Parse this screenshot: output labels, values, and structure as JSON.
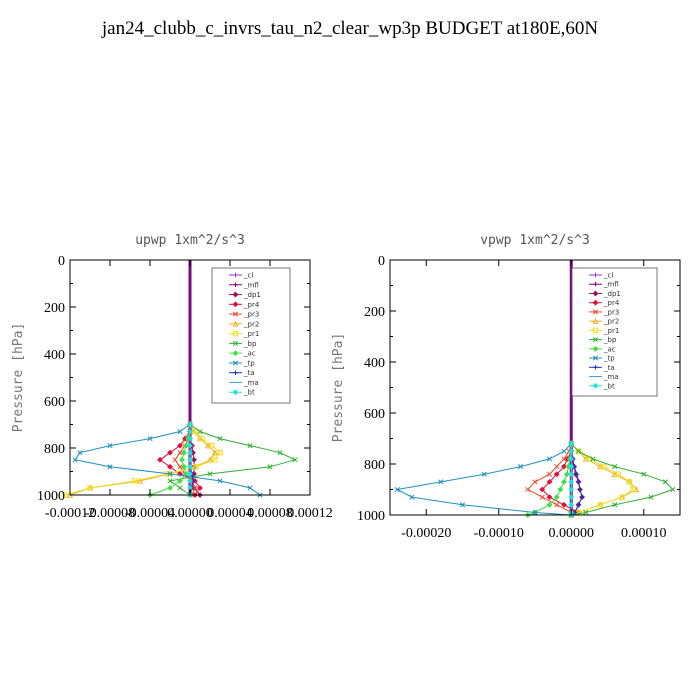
{
  "page": {
    "title": "jan24_clubb_c_invrs_tau_n2_clear_wp3p  BUDGET at180E,60N"
  },
  "legend_entries": [
    {
      "label": "_cl",
      "color": "#9b30d9",
      "marker": "plus"
    },
    {
      "label": "_mfl",
      "color": "#7a0a7a",
      "marker": "plus"
    },
    {
      "label": "_dp1",
      "color": "#a0105a",
      "marker": "diamond"
    },
    {
      "label": "_pr4",
      "color": "#e0103a",
      "marker": "diamond"
    },
    {
      "label": "_pr3",
      "color": "#f04a2a",
      "marker": "x"
    },
    {
      "label": "_pr2",
      "color": "#f0b020",
      "marker": "triangle"
    },
    {
      "label": "_pr1",
      "color": "#f0e020",
      "marker": "square"
    },
    {
      "label": "_bp",
      "color": "#30b030",
      "marker": "x"
    },
    {
      "label": "_ac",
      "color": "#40e040",
      "marker": "diamond"
    },
    {
      "label": "_tp",
      "color": "#2090c0",
      "marker": "x"
    },
    {
      "label": "_ta",
      "color": "#2030c0",
      "marker": "plus"
    },
    {
      "label": "_ma",
      "color": "#40a0e0",
      "marker": "dash"
    },
    {
      "label": "_bt",
      "color": "#20e0e0",
      "marker": "diamond"
    }
  ],
  "chart_data": [
    {
      "type": "line",
      "title": "upwp  1xm^2/s^3",
      "ylabel": "Pressure [hPa]",
      "xlabel": "",
      "xlim": [
        -0.00012,
        0.00012
      ],
      "ylim": [
        1000,
        0
      ],
      "x_ticks": [
        "-0.00012",
        "-0.00008",
        "-0.00004",
        "0.00000",
        "0.00004",
        "0.00008",
        "0.00012"
      ],
      "y_ticks": [
        "0",
        "200",
        "400",
        "600",
        "800",
        "1000"
      ],
      "legend_position": "top-right",
      "pressure_levels": [
        700,
        730,
        760,
        790,
        820,
        850,
        880,
        910,
        940,
        970,
        1000
      ],
      "series": [
        {
          "name": "_cl",
          "values": [
            0,
            0,
            0,
            0,
            0,
            0,
            0,
            0,
            0,
            0,
            0
          ]
        },
        {
          "name": "_mfl",
          "values": [
            0,
            0,
            0,
            0,
            0,
            0,
            0,
            0,
            0,
            0,
            0
          ]
        },
        {
          "name": "_dp1",
          "values": [
            0,
            0,
            0,
            2e-06,
            3e-06,
            4e-06,
            4e-06,
            4e-06,
            3e-06,
            4e-06,
            1e-05
          ]
        },
        {
          "name": "_pr4",
          "values": [
            0,
            0,
            -5e-06,
            -1e-05,
            -2e-05,
            -3e-05,
            -2e-05,
            -1e-05,
            5e-06,
            1e-05,
            5e-06
          ]
        },
        {
          "name": "_pr3",
          "values": [
            0,
            0,
            -2e-06,
            -5e-06,
            -1e-05,
            -1.5e-05,
            -1e-05,
            -5e-06,
            2e-06,
            5e-06,
            2e-06
          ]
        },
        {
          "name": "_pr2",
          "values": [
            0,
            4e-06,
            1e-05,
            1.8e-05,
            2.5e-05,
            2e-05,
            5e-06,
            -2e-05,
            -5e-05,
            -0.0001,
            -0.00012
          ]
        },
        {
          "name": "_pr1",
          "values": [
            0,
            5e-06,
            1.2e-05,
            2.2e-05,
            3e-05,
            2.5e-05,
            6e-06,
            -2.2e-05,
            -5.5e-05,
            -0.0001,
            -0.000125
          ]
        },
        {
          "name": "_bp",
          "values": [
            0,
            1e-05,
            3e-05,
            6e-05,
            9e-05,
            0.000105,
            8e-05,
            2e-05,
            -2e-05,
            -1e-05,
            0
          ]
        },
        {
          "name": "_ac",
          "values": [
            0,
            0,
            -2e-06,
            -4e-06,
            -6e-06,
            -8e-06,
            -6e-06,
            -4e-06,
            -1e-05,
            -2e-05,
            -4e-05
          ]
        },
        {
          "name": "_tp",
          "values": [
            0,
            -1e-05,
            -4e-05,
            -8e-05,
            -0.00011,
            -0.000115,
            -8e-05,
            -2e-05,
            3e-05,
            6e-05,
            7e-05
          ]
        },
        {
          "name": "_ta",
          "values": [
            0,
            0,
            0,
            0,
            0,
            0,
            0,
            2e-06,
            3e-06,
            2e-06,
            0
          ]
        },
        {
          "name": "_ma",
          "values": [
            0,
            0,
            0,
            0,
            0,
            0,
            0,
            0,
            0,
            0,
            0
          ]
        },
        {
          "name": "_bt",
          "values": [
            0,
            0,
            0,
            0,
            0,
            0,
            0,
            0,
            0,
            0,
            0
          ]
        }
      ]
    },
    {
      "type": "line",
      "title": "vpwp  1xm^2/s^3",
      "ylabel": "Pressure [hPa]",
      "xlabel": "",
      "xlim": [
        -0.00025,
        0.00015
      ],
      "ylim": [
        1000,
        0
      ],
      "x_ticks": [
        "-0.00020",
        "-0.00010",
        "0.00000",
        "0.00010"
      ],
      "y_ticks": [
        "0",
        "200",
        "400",
        "600",
        "800",
        "1000"
      ],
      "legend_position": "top-right",
      "pressure_levels": [
        720,
        750,
        780,
        810,
        840,
        870,
        900,
        930,
        960,
        990,
        1000
      ],
      "series": [
        {
          "name": "_cl",
          "values": [
            0,
            0,
            0,
            0,
            0,
            0,
            0,
            0,
            0,
            0,
            0
          ]
        },
        {
          "name": "_mfl",
          "values": [
            0,
            0,
            0,
            0,
            0,
            0,
            0,
            0,
            0,
            0,
            0
          ]
        },
        {
          "name": "_dp1",
          "values": [
            0,
            0,
            2e-06,
            4e-06,
            6e-06,
            1e-05,
            1.2e-05,
            1.5e-05,
            1e-05,
            5e-06,
            0
          ]
        },
        {
          "name": "_pr4",
          "values": [
            0,
            0,
            -5e-06,
            -1e-05,
            -2e-05,
            -3e-05,
            -4e-05,
            -3e-05,
            -1e-05,
            1e-05,
            0
          ]
        },
        {
          "name": "_pr3",
          "values": [
            0,
            -3e-06,
            -1e-05,
            -2e-05,
            -3e-05,
            -5e-05,
            -6e-05,
            -4e-05,
            -2e-05,
            0,
            0
          ]
        },
        {
          "name": "_pr2",
          "values": [
            0,
            1e-05,
            2e-05,
            4e-05,
            6e-05,
            8e-05,
            9e-05,
            7e-05,
            4e-05,
            1e-05,
            0
          ]
        },
        {
          "name": "_pr1",
          "values": [
            0,
            1e-05,
            2.5e-05,
            4.5e-05,
            6.5e-05,
            8e-05,
            8.5e-05,
            7e-05,
            4e-05,
            1e-05,
            0
          ]
        },
        {
          "name": "_bp",
          "values": [
            0,
            1e-05,
            3e-05,
            6e-05,
            0.0001,
            0.00013,
            0.00014,
            0.00011,
            6e-05,
            2e-05,
            0
          ]
        },
        {
          "name": "_ac",
          "values": [
            0,
            0,
            -2e-06,
            -4e-06,
            -6e-06,
            -1e-05,
            -1.5e-05,
            -2e-05,
            -3e-05,
            -5e-05,
            -6e-05
          ]
        },
        {
          "name": "_tp",
          "values": [
            0,
            -1e-05,
            -3e-05,
            -7e-05,
            -0.00012,
            -0.00018,
            -0.00024,
            -0.00022,
            -0.00015,
            -5e-05,
            0
          ]
        },
        {
          "name": "_ta",
          "values": [
            0,
            0,
            2e-06,
            4e-06,
            8e-06,
            1e-05,
            1.2e-05,
            1.5e-05,
            1e-05,
            5e-06,
            0
          ]
        },
        {
          "name": "_ma",
          "values": [
            0,
            0,
            0,
            0,
            0,
            0,
            0,
            0,
            0,
            0,
            0
          ]
        },
        {
          "name": "_bt",
          "values": [
            0,
            0,
            0,
            0,
            0,
            0,
            0,
            0,
            0,
            0,
            0
          ]
        }
      ]
    }
  ]
}
